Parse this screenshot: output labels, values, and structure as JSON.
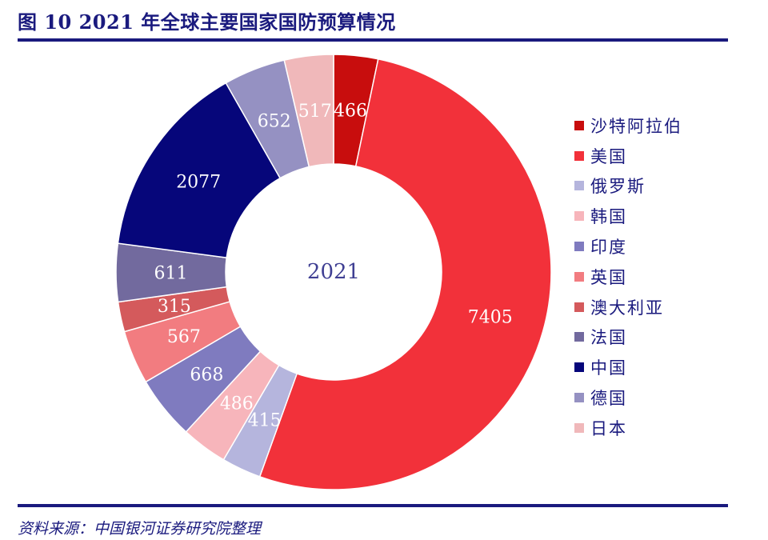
{
  "title": "图 10 2021 年全球主要国家国防预算情况",
  "source": "资料来源：中国银河证券研究院整理",
  "chart_data": {
    "type": "pie",
    "subtype": "donut",
    "center_label": "2021",
    "categories": [
      "沙特阿拉伯",
      "美国",
      "俄罗斯",
      "韩国",
      "印度",
      "英国",
      "澳大利亚",
      "法国",
      "中国",
      "德国",
      "日本"
    ],
    "values": [
      466,
      7405,
      415,
      486,
      668,
      567,
      315,
      611,
      2077,
      652,
      517
    ],
    "colors": [
      "#c80d0d",
      "#f2313a",
      "#b5b5dd",
      "#f7b5bb",
      "#7f7bbf",
      "#f27c80",
      "#d45a5c",
      "#726a9e",
      "#06067a",
      "#9591c2",
      "#f0b8ba"
    ],
    "label_colors": [
      "#ffffff",
      "#ffffff",
      "#ffffff",
      "#ffffff",
      "#ffffff",
      "#ffffff",
      "#ffffff",
      "#ffffff",
      "#ffffff",
      "#ffffff",
      "#ffffff"
    ],
    "legend_position": "right"
  }
}
